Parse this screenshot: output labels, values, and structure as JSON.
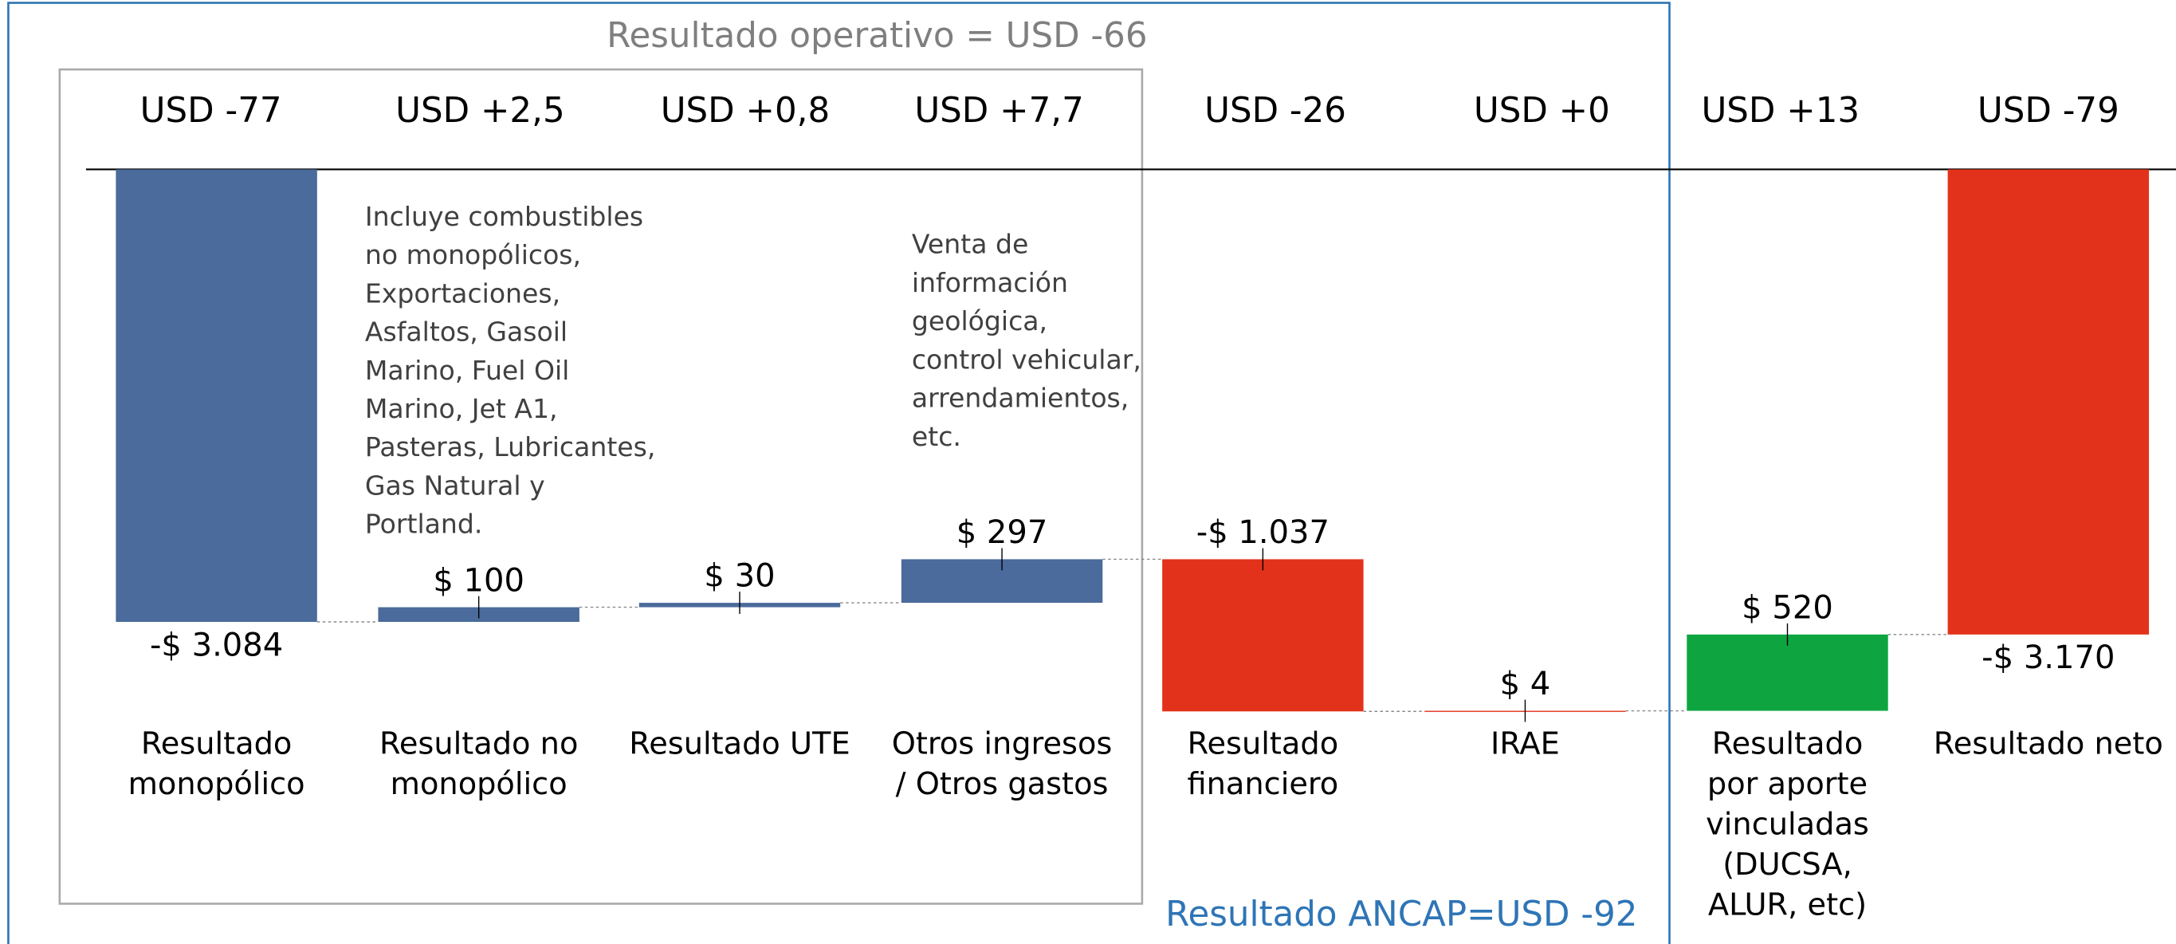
{
  "chart_data": {
    "type": "waterfall",
    "title": "Resultado operativo = USD -66",
    "top_labels": [
      "USD -77",
      "USD +2,5",
      "USD +0,8",
      "USD +7,7",
      "USD -26",
      "USD +0",
      "USD +13",
      "USD -79"
    ],
    "categories": [
      [
        "Resultado",
        "monopólico"
      ],
      [
        "Resultado no",
        "monopólico"
      ],
      [
        "Resultado UTE"
      ],
      [
        "Otros ingresos",
        "/ Otros gastos"
      ],
      [
        "Resultado",
        "financiero"
      ],
      [
        "IRAE"
      ],
      [
        "Resultado",
        "por aporte",
        "vinculadas",
        "(DUCSA,",
        "ALUR, etc)"
      ],
      [
        "Resultado neto"
      ]
    ],
    "values": [
      -3084,
      100,
      30,
      297,
      -1037,
      4,
      520,
      -3170
    ],
    "value_labels": [
      "-$ 3.084",
      "$ 100",
      "$ 30",
      "$ 297",
      "-$ 1.037",
      "$ 4",
      "$ 520",
      "-$ 3.170"
    ],
    "colors": [
      "#4a6b9b",
      "#4a6b9b",
      "#4a6b9b",
      "#4a6b9b",
      "#e3321b",
      "#e3321b",
      "#0ea540",
      "#e3321b"
    ],
    "ylim": [
      -5000,
      0
    ],
    "annotations": [
      [
        "Incluye combustibles",
        "no monopólicos,",
        "Exportaciones,",
        "Asfaltos, Gasoil",
        "Marino, Fuel Oil",
        "Marino, Jet A1,",
        "Pasteras, Lubricantes,",
        "Gas Natural y",
        "Portland."
      ],
      [
        "Venta de",
        "información",
        "geológica,",
        "control vehicular,",
        "arrendamientos,",
        "etc."
      ]
    ],
    "footer": "Resultado ANCAP=USD -92"
  }
}
